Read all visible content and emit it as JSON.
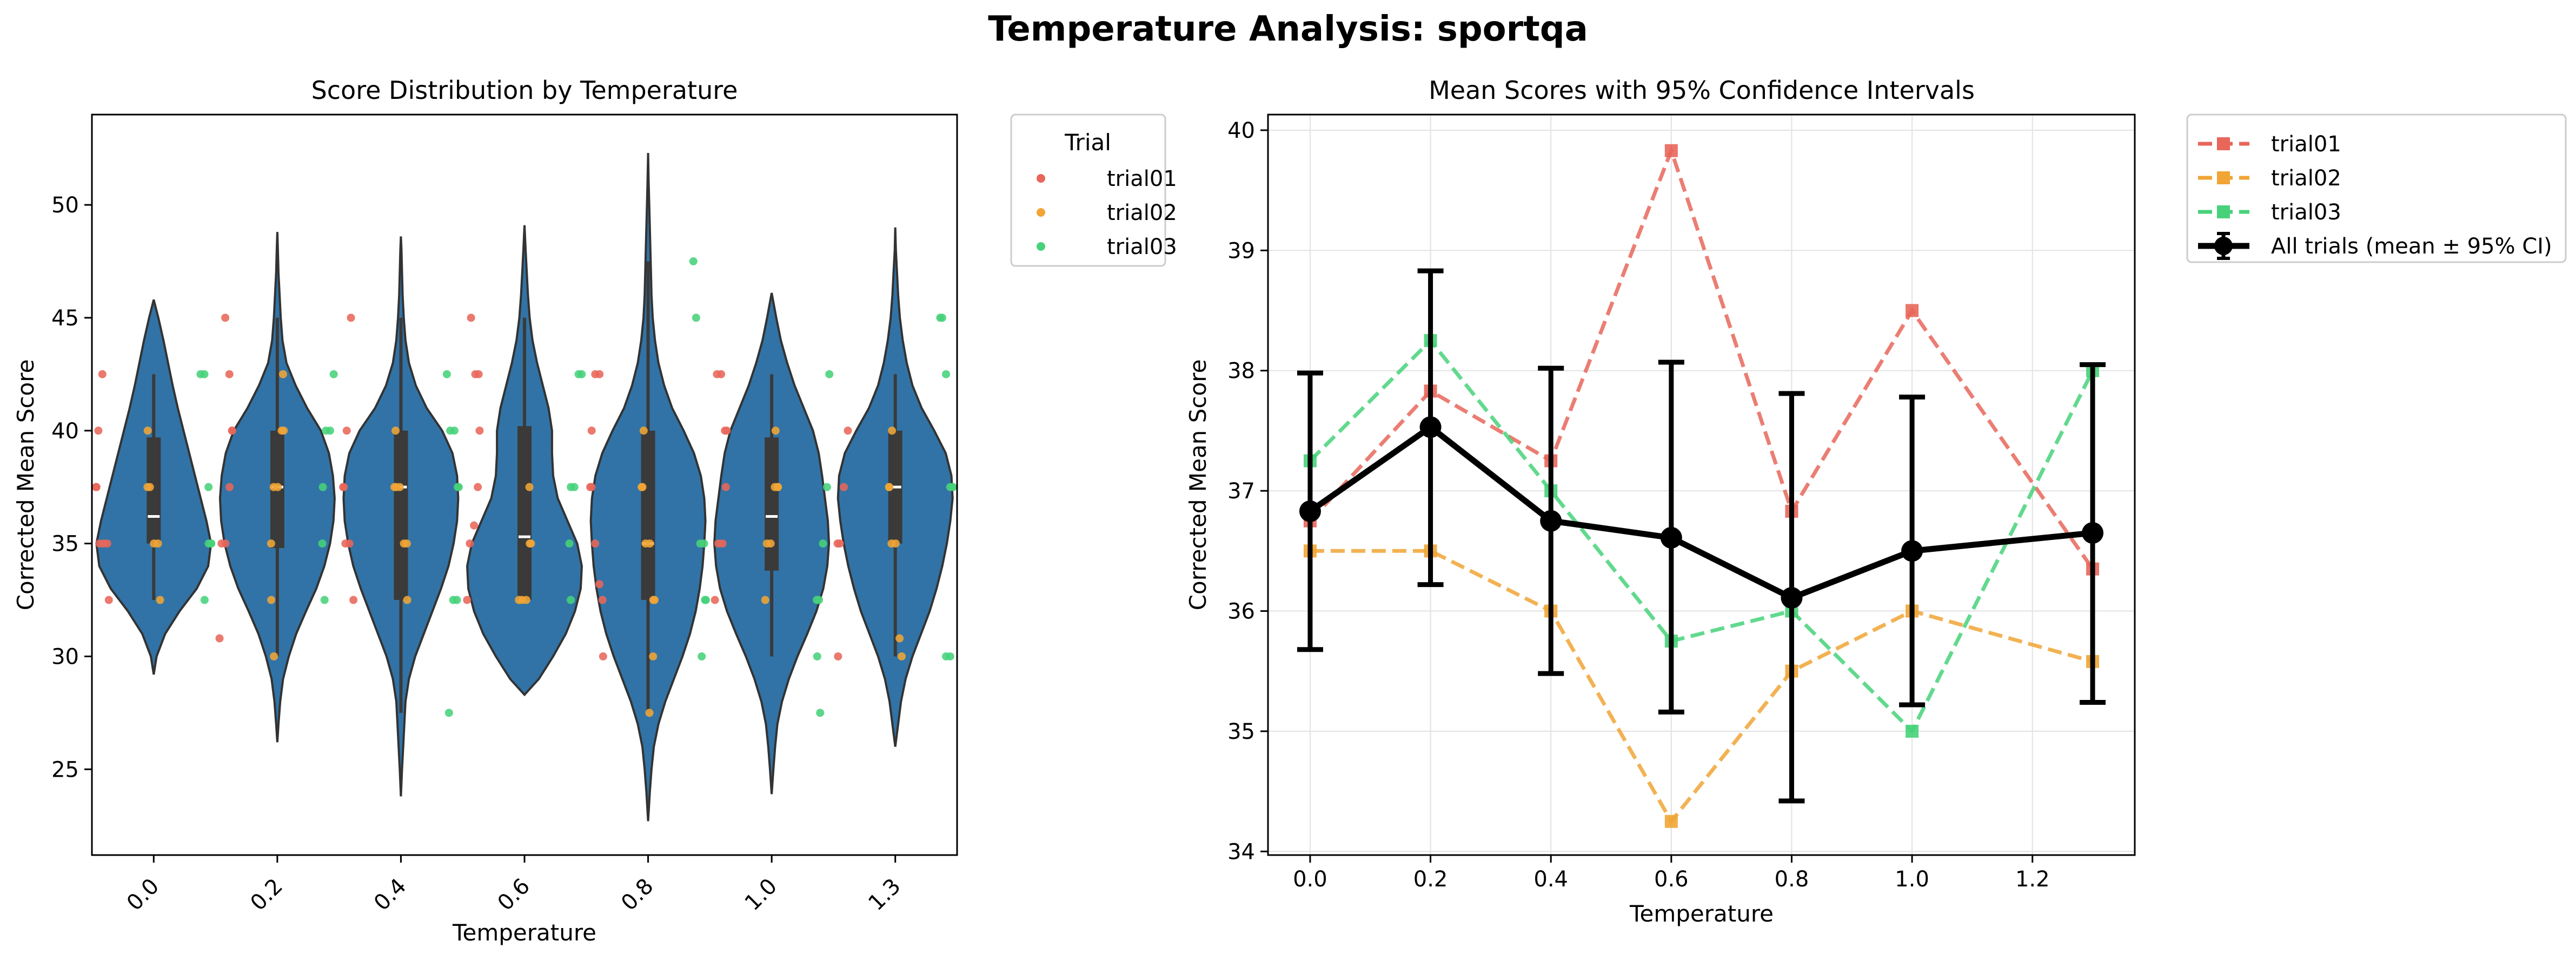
{
  "figure": {
    "title": "Temperature Analysis: sportqa"
  },
  "colors": {
    "violin": "#3173a6",
    "trial01": "#e8665a",
    "trial02": "#f0a535",
    "trial03": "#47d27a",
    "all": "#000000",
    "grid": "#e2e2e2"
  },
  "chart_data": [
    {
      "type": "violin",
      "title": "Score Distribution by Temperature",
      "xlabel": "Temperature",
      "ylabel": "Corrected Mean Score",
      "categories": [
        "0.0",
        "0.2",
        "0.4",
        "0.6",
        "0.8",
        "1.0",
        "1.3"
      ],
      "yticks": [
        25,
        30,
        35,
        40,
        45,
        50
      ],
      "ylim": [
        21.2,
        54
      ],
      "legend": {
        "title": "Trial",
        "entries": [
          "trial01",
          "trial02",
          "trial03"
        ],
        "position": "outside-right"
      },
      "violins": [
        {
          "min": 29.2,
          "max": 45.8,
          "q1": 35,
          "median": 36.2,
          "q3": 39.7,
          "wlo": 32.5,
          "whi": 42.5,
          "shape": [
            [
              29.2,
              0
            ],
            [
              30,
              0.05
            ],
            [
              31,
              0.2
            ],
            [
              32,
              0.45
            ],
            [
              33,
              0.75
            ],
            [
              34,
              0.95
            ],
            [
              35,
              1.0
            ],
            [
              36,
              0.92
            ],
            [
              37,
              0.82
            ],
            [
              38,
              0.72
            ],
            [
              39,
              0.62
            ],
            [
              40,
              0.52
            ],
            [
              41,
              0.42
            ],
            [
              42,
              0.33
            ],
            [
              43,
              0.25
            ],
            [
              44,
              0.17
            ],
            [
              45,
              0.08
            ],
            [
              45.8,
              0
            ]
          ]
        },
        {
          "min": 26.2,
          "max": 48.8,
          "q1": 34.8,
          "median": 37.5,
          "q3": 40,
          "wlo": 30,
          "whi": 45,
          "shape": [
            [
              26.2,
              0
            ],
            [
              27,
              0.02
            ],
            [
              28,
              0.05
            ],
            [
              29,
              0.1
            ],
            [
              30,
              0.2
            ],
            [
              31,
              0.33
            ],
            [
              32,
              0.5
            ],
            [
              33,
              0.68
            ],
            [
              34,
              0.82
            ],
            [
              35,
              0.92
            ],
            [
              36,
              0.98
            ],
            [
              37,
              1.0
            ],
            [
              38,
              0.97
            ],
            [
              39,
              0.9
            ],
            [
              40,
              0.76
            ],
            [
              41,
              0.52
            ],
            [
              42,
              0.32
            ],
            [
              43,
              0.16
            ],
            [
              44,
              0.09
            ],
            [
              45,
              0.06
            ],
            [
              46,
              0.04
            ],
            [
              47,
              0.02
            ],
            [
              48,
              0.01
            ],
            [
              48.8,
              0
            ]
          ]
        },
        {
          "min": 23.8,
          "max": 48.6,
          "q1": 32.5,
          "median": 37.5,
          "q3": 40,
          "wlo": 27.5,
          "whi": 45,
          "shape": [
            [
              23.8,
              0
            ],
            [
              25,
              0.02
            ],
            [
              26,
              0.04
            ],
            [
              27,
              0.06
            ],
            [
              28,
              0.08
            ],
            [
              29,
              0.14
            ],
            [
              30,
              0.25
            ],
            [
              31,
              0.4
            ],
            [
              32,
              0.55
            ],
            [
              33,
              0.7
            ],
            [
              34,
              0.83
            ],
            [
              35,
              0.92
            ],
            [
              36,
              0.98
            ],
            [
              37,
              1.0
            ],
            [
              38,
              0.98
            ],
            [
              39,
              0.9
            ],
            [
              40,
              0.72
            ],
            [
              41,
              0.45
            ],
            [
              42,
              0.26
            ],
            [
              43,
              0.14
            ],
            [
              44,
              0.08
            ],
            [
              45,
              0.05
            ],
            [
              46,
              0.03
            ],
            [
              47,
              0.02
            ],
            [
              48,
              0.01
            ],
            [
              48.6,
              0
            ]
          ]
        },
        {
          "min": 28.3,
          "max": 49.1,
          "q1": 32.5,
          "median": 35.3,
          "q3": 40.2,
          "wlo": 32.5,
          "whi": 45,
          "shape": [
            [
              28.3,
              0
            ],
            [
              29,
              0.25
            ],
            [
              30,
              0.5
            ],
            [
              31,
              0.72
            ],
            [
              32,
              0.88
            ],
            [
              33,
              0.98
            ],
            [
              34,
              1.0
            ],
            [
              35,
              0.92
            ],
            [
              36,
              0.75
            ],
            [
              37,
              0.58
            ],
            [
              38,
              0.5
            ],
            [
              39,
              0.48
            ],
            [
              40,
              0.48
            ],
            [
              41,
              0.42
            ],
            [
              42,
              0.32
            ],
            [
              43,
              0.22
            ],
            [
              44,
              0.14
            ],
            [
              45,
              0.09
            ],
            [
              46,
              0.06
            ],
            [
              47,
              0.04
            ],
            [
              48,
              0.02
            ],
            [
              49.1,
              0
            ]
          ]
        },
        {
          "min": 22.7,
          "max": 52.3,
          "q1": 32.5,
          "median": 35,
          "q3": 40,
          "wlo": 27.5,
          "whi": 47.5,
          "shape": [
            [
              22.7,
              0
            ],
            [
              24,
              0.03
            ],
            [
              25,
              0.06
            ],
            [
              26,
              0.1
            ],
            [
              27,
              0.18
            ],
            [
              28,
              0.3
            ],
            [
              29,
              0.45
            ],
            [
              30,
              0.6
            ],
            [
              31,
              0.73
            ],
            [
              32,
              0.83
            ],
            [
              33,
              0.9
            ],
            [
              34,
              0.95
            ],
            [
              35,
              0.98
            ],
            [
              36,
              1.0
            ],
            [
              37,
              0.98
            ],
            [
              38,
              0.92
            ],
            [
              39,
              0.8
            ],
            [
              40,
              0.62
            ],
            [
              41,
              0.42
            ],
            [
              42,
              0.28
            ],
            [
              43,
              0.18
            ],
            [
              44,
              0.12
            ],
            [
              45,
              0.08
            ],
            [
              46,
              0.06
            ],
            [
              47,
              0.05
            ],
            [
              48,
              0.04
            ],
            [
              49,
              0.03
            ],
            [
              50,
              0.02
            ],
            [
              51,
              0.01
            ],
            [
              52.3,
              0
            ]
          ]
        },
        {
          "min": 23.9,
          "max": 46.1,
          "q1": 33.8,
          "median": 36.2,
          "q3": 39.7,
          "wlo": 30,
          "whi": 42.5,
          "shape": [
            [
              23.9,
              0
            ],
            [
              25,
              0.03
            ],
            [
              26,
              0.06
            ],
            [
              27,
              0.1
            ],
            [
              28,
              0.18
            ],
            [
              29,
              0.3
            ],
            [
              30,
              0.45
            ],
            [
              31,
              0.62
            ],
            [
              32,
              0.78
            ],
            [
              33,
              0.9
            ],
            [
              34,
              0.97
            ],
            [
              35,
              1.0
            ],
            [
              36,
              0.98
            ],
            [
              37,
              0.93
            ],
            [
              38,
              0.88
            ],
            [
              39,
              0.82
            ],
            [
              40,
              0.72
            ],
            [
              41,
              0.56
            ],
            [
              42,
              0.4
            ],
            [
              43,
              0.27
            ],
            [
              44,
              0.16
            ],
            [
              45,
              0.08
            ],
            [
              46.1,
              0
            ]
          ]
        },
        {
          "min": 26,
          "max": 49,
          "q1": 35,
          "median": 37.5,
          "q3": 40,
          "wlo": 30,
          "whi": 42.5,
          "shape": [
            [
              26,
              0
            ],
            [
              27,
              0.05
            ],
            [
              28,
              0.1
            ],
            [
              29,
              0.18
            ],
            [
              30,
              0.3
            ],
            [
              31,
              0.45
            ],
            [
              32,
              0.6
            ],
            [
              33,
              0.72
            ],
            [
              34,
              0.82
            ],
            [
              35,
              0.9
            ],
            [
              36,
              0.96
            ],
            [
              37,
              1.0
            ],
            [
              38,
              0.98
            ],
            [
              39,
              0.88
            ],
            [
              40,
              0.68
            ],
            [
              41,
              0.46
            ],
            [
              42,
              0.3
            ],
            [
              43,
              0.2
            ],
            [
              44,
              0.13
            ],
            [
              45,
              0.08
            ],
            [
              46,
              0.05
            ],
            [
              47,
              0.03
            ],
            [
              48,
              0.01
            ],
            [
              49,
              0
            ]
          ]
        }
      ],
      "points": {
        "trial01": [
          [
            42.5,
            40,
            37.5,
            37.5,
            35,
            35,
            35,
            32.5
          ],
          [
            45,
            42.5,
            40,
            40,
            37.5,
            35,
            35,
            30.8
          ],
          [
            45,
            40,
            37.5,
            37.5,
            35,
            35,
            32.5
          ],
          [
            45,
            42.5,
            42.5,
            40,
            37.5,
            35.8,
            35,
            32.5
          ],
          [
            42.5,
            42.5,
            40,
            37.5,
            37.5,
            35,
            33.2,
            32.5,
            30
          ],
          [
            42.5,
            42.5,
            40,
            40,
            37.5,
            35,
            35,
            32.5
          ],
          [
            40,
            37.5,
            35,
            35,
            30
          ]
        ],
        "trial02": [
          [
            40,
            37.5,
            37.5,
            35,
            35,
            32.5
          ],
          [
            42.5,
            40,
            40,
            37.5,
            37.5,
            35,
            32.5,
            30
          ],
          [
            40,
            37.5,
            37.5,
            37.5,
            35,
            35,
            32.5
          ],
          [
            37.5,
            35,
            35,
            32.5,
            32.5,
            32.5
          ],
          [
            40,
            37.5,
            37.5,
            35,
            35,
            32.5,
            32.5,
            30,
            27.5
          ],
          [
            40,
            37.5,
            37.5,
            37.5,
            35,
            35,
            32.5
          ],
          [
            40,
            37.5,
            37.5,
            35,
            35,
            30.8,
            30
          ]
        ],
        "trial03": [
          [
            42.5,
            42.5,
            37.5,
            35,
            35,
            35,
            32.5
          ],
          [
            42.5,
            40,
            40,
            37.5,
            35,
            32.5
          ],
          [
            42.5,
            40,
            40,
            37.5,
            37.5,
            32.5,
            32.5,
            27.5
          ],
          [
            42.5,
            42.5,
            37.5,
            37.5,
            35,
            32.5
          ],
          [
            47.5,
            45,
            35,
            35,
            32.5,
            32.5,
            30
          ],
          [
            42.5,
            37.5,
            35,
            32.5,
            32.5,
            30,
            27.5
          ],
          [
            45,
            45,
            42.5,
            37.5,
            37.5,
            37.5,
            30,
            30
          ]
        ]
      }
    },
    {
      "type": "line",
      "title": "Mean Scores with 95% Confidence Intervals",
      "xlabel": "Temperature",
      "ylabel": "Corrected Mean Score",
      "x": [
        0.0,
        0.2,
        0.4,
        0.6,
        0.8,
        1.0,
        1.3
      ],
      "xlim": [
        -0.07,
        1.37
      ],
      "ylim": [
        33.97,
        40.13
      ],
      "xticks": [
        0.0,
        0.2,
        0.4,
        0.6,
        0.8,
        1.0,
        1.2
      ],
      "xtick_labels": [
        "0.0",
        "0.2",
        "0.4",
        "0.6",
        "0.8",
        "1.0",
        "1.2"
      ],
      "yticks": [
        34,
        35,
        36,
        37,
        38,
        39,
        40
      ],
      "grid": true,
      "legend_position": "outside-right",
      "series": [
        {
          "name": "trial01",
          "values": [
            36.75,
            37.83,
            37.25,
            39.83,
            36.83,
            38.5,
            36.35
          ]
        },
        {
          "name": "trial02",
          "values": [
            36.5,
            36.5,
            36.0,
            34.25,
            35.5,
            36.0,
            35.58
          ]
        },
        {
          "name": "trial03",
          "values": [
            37.25,
            38.25,
            37.0,
            35.75,
            36.0,
            35.0,
            38.0
          ]
        }
      ],
      "all_trials": {
        "name": "All trials (mean ± 95% CI)",
        "mean": [
          36.83,
          37.53,
          36.75,
          36.61,
          36.11,
          36.5,
          36.65
        ],
        "ci_low": [
          35.68,
          36.22,
          35.48,
          35.16,
          34.42,
          35.22,
          35.24
        ],
        "ci_high": [
          37.98,
          38.83,
          38.02,
          38.07,
          37.81,
          37.78,
          38.05
        ]
      }
    }
  ]
}
